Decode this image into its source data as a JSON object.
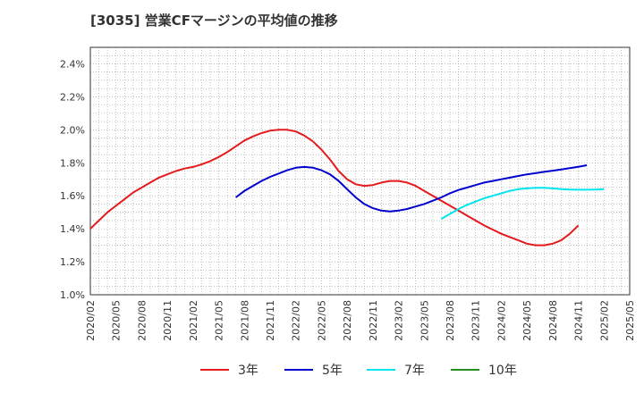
{
  "chart_data": {
    "type": "line",
    "title": "[3035]  営業CFマージンの平均値の推移",
    "xlabel": "",
    "ylabel": "",
    "ylim": [
      1.0,
      2.5
    ],
    "yticks": [
      "1.0%",
      "1.2%",
      "1.4%",
      "1.6%",
      "1.8%",
      "2.0%",
      "2.2%",
      "2.4%"
    ],
    "ytick_values": [
      1.0,
      1.2,
      1.4,
      1.6,
      1.8,
      2.0,
      2.2,
      2.4
    ],
    "xticks": [
      "2020/02",
      "2020/05",
      "2020/08",
      "2020/11",
      "2021/02",
      "2021/05",
      "2021/08",
      "2021/11",
      "2022/02",
      "2022/05",
      "2022/08",
      "2022/11",
      "2023/02",
      "2023/05",
      "2023/08",
      "2023/11",
      "2024/02",
      "2024/05",
      "2024/08",
      "2024/11",
      "2025/02",
      "2025/05"
    ],
    "grid": true,
    "legend_position": "bottom",
    "series": [
      {
        "name": "3年",
        "color": "#e41a1c",
        "start": "2020/02",
        "values": [
          1.4,
          1.45,
          1.5,
          1.54,
          1.58,
          1.62,
          1.65,
          1.68,
          1.71,
          1.73,
          1.75,
          1.765,
          1.775,
          1.79,
          1.81,
          1.835,
          1.865,
          1.9,
          1.935,
          1.96,
          1.98,
          1.995,
          2.0,
          2.0,
          1.99,
          1.965,
          1.93,
          1.88,
          1.82,
          1.75,
          1.7,
          1.67,
          1.66,
          1.665,
          1.68,
          1.69,
          1.69,
          1.68,
          1.66,
          1.63,
          1.6,
          1.57,
          1.54,
          1.51,
          1.48,
          1.45,
          1.42,
          1.395,
          1.37,
          1.35,
          1.33,
          1.31,
          1.3,
          1.3,
          1.31,
          1.33,
          1.37,
          1.42
        ]
      },
      {
        "name": "5年",
        "color": "#0000cd",
        "start": "2021/07",
        "values": [
          1.59,
          1.63,
          1.66,
          1.69,
          1.715,
          1.735,
          1.755,
          1.77,
          1.775,
          1.77,
          1.755,
          1.73,
          1.69,
          1.64,
          1.59,
          1.55,
          1.525,
          1.51,
          1.505,
          1.51,
          1.52,
          1.535,
          1.55,
          1.57,
          1.59,
          1.615,
          1.635,
          1.65,
          1.665,
          1.68,
          1.69,
          1.7,
          1.71,
          1.72,
          1.73,
          1.737,
          1.745,
          1.752,
          1.76,
          1.768,
          1.776,
          1.785
        ]
      },
      {
        "name": "7年",
        "color": "#00e5ee",
        "start": "2023/07",
        "values": [
          1.46,
          1.49,
          1.52,
          1.545,
          1.565,
          1.585,
          1.6,
          1.615,
          1.63,
          1.64,
          1.645,
          1.648,
          1.648,
          1.645,
          1.64,
          1.638,
          1.637,
          1.637,
          1.638,
          1.64
        ]
      },
      {
        "name": "10年",
        "color": "#228b22",
        "start": "2025/02",
        "values": []
      }
    ]
  }
}
